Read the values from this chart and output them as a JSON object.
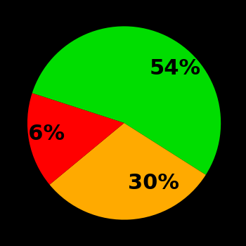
{
  "slices": [
    54,
    30,
    16
  ],
  "colors": [
    "#00dd00",
    "#ffaa00",
    "#ff0000"
  ],
  "labels": [
    "54%",
    "30%",
    "16%"
  ],
  "background_color": "#000000",
  "startangle": 162,
  "figsize": [
    3.5,
    3.5
  ],
  "dpi": 100,
  "label_fontsize": 22,
  "label_fontweight": "bold",
  "labeldistance": 0.62
}
